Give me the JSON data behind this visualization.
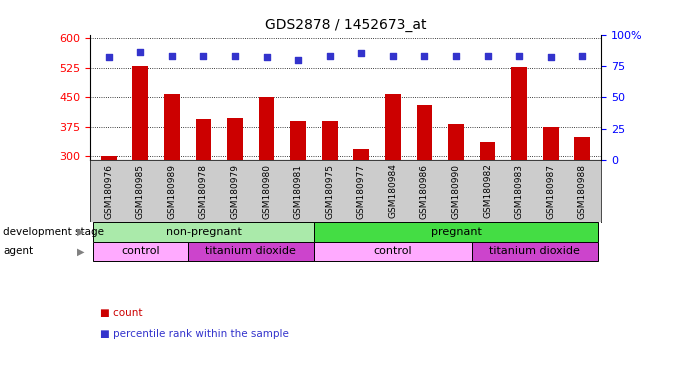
{
  "title": "GDS2878 / 1452673_at",
  "samples": [
    "GSM180976",
    "GSM180985",
    "GSM180989",
    "GSM180978",
    "GSM180979",
    "GSM180980",
    "GSM180981",
    "GSM180975",
    "GSM180977",
    "GSM180984",
    "GSM180986",
    "GSM180990",
    "GSM180982",
    "GSM180983",
    "GSM180987",
    "GSM180988"
  ],
  "bar_values": [
    302,
    530,
    460,
    395,
    397,
    452,
    390,
    390,
    320,
    458,
    430,
    382,
    338,
    527,
    375,
    350
  ],
  "percentile_values": [
    82,
    86,
    83,
    83,
    83,
    82,
    80,
    83,
    85,
    83,
    83,
    83,
    83,
    83,
    82,
    83
  ],
  "bar_color": "#cc0000",
  "dot_color": "#3333cc",
  "ylim_left": [
    290,
    610
  ],
  "ylim_right": [
    0,
    100
  ],
  "yticks_left": [
    300,
    375,
    450,
    525,
    600
  ],
  "yticks_right": [
    0,
    25,
    50,
    75,
    100
  ],
  "background_color": "#ffffff",
  "plot_bg_color": "#ffffff",
  "annotation_rows": [
    {
      "label": "development stage",
      "segments": [
        {
          "text": "non-pregnant",
          "start": 0,
          "end": 7,
          "color": "#aaeaaa"
        },
        {
          "text": "pregnant",
          "start": 7,
          "end": 16,
          "color": "#44dd44"
        }
      ]
    },
    {
      "label": "agent",
      "segments": [
        {
          "text": "control",
          "start": 0,
          "end": 3,
          "color": "#ffaaff"
        },
        {
          "text": "titanium dioxide",
          "start": 3,
          "end": 7,
          "color": "#cc44cc"
        },
        {
          "text": "control",
          "start": 7,
          "end": 12,
          "color": "#ffaaff"
        },
        {
          "text": "titanium dioxide",
          "start": 12,
          "end": 16,
          "color": "#cc44cc"
        }
      ]
    }
  ],
  "legend": [
    {
      "label": "count",
      "color": "#cc0000"
    },
    {
      "label": "percentile rank within the sample",
      "color": "#3333cc"
    }
  ],
  "tick_label_bg": "#cccccc"
}
